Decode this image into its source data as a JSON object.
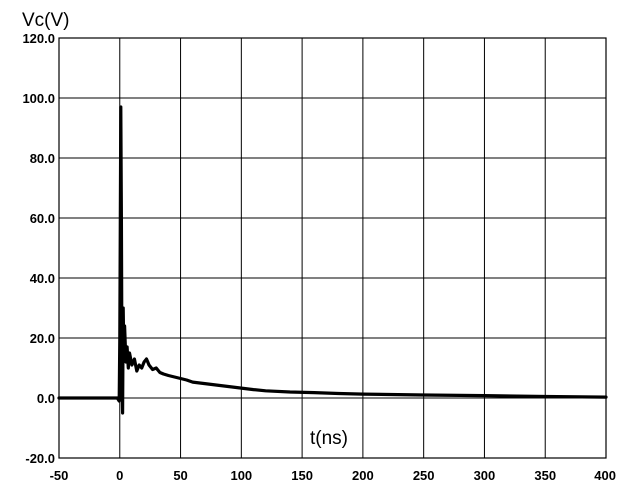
{
  "chart_data": {
    "type": "line",
    "title": "",
    "ylabel": "Vc(V)",
    "xlabel": "t(ns)",
    "xlim": [
      -50,
      400
    ],
    "ylim": [
      -20,
      120
    ],
    "x_ticks": [
      -50,
      0,
      50,
      100,
      150,
      200,
      250,
      300,
      350,
      400
    ],
    "y_ticks": [
      -20,
      0,
      20,
      40,
      60,
      80,
      100,
      120
    ],
    "x_tick_labels": [
      "-50",
      "0",
      "50",
      "100",
      "150",
      "200",
      "250",
      "300",
      "350",
      "400"
    ],
    "y_tick_labels": [
      "-20.0",
      "0.0",
      "20.0",
      "40.0",
      "60.0",
      "80.0",
      "100.0",
      "120.0"
    ],
    "grid": true,
    "legend": "none",
    "series": [
      {
        "color": "#000000",
        "points": [
          [
            -50,
            0
          ],
          [
            -20,
            0
          ],
          [
            -2,
            0
          ],
          [
            -0.5,
            -1
          ],
          [
            0,
            20
          ],
          [
            0.8,
            97
          ],
          [
            1.3,
            60
          ],
          [
            1.8,
            5
          ],
          [
            2.3,
            -5
          ],
          [
            2.8,
            30
          ],
          [
            3.3,
            15
          ],
          [
            4,
            24
          ],
          [
            5,
            12
          ],
          [
            6,
            17
          ],
          [
            7,
            10
          ],
          [
            8,
            15
          ],
          [
            10,
            11
          ],
          [
            12,
            13
          ],
          [
            14,
            9
          ],
          [
            16,
            11
          ],
          [
            18,
            10
          ],
          [
            20,
            12
          ],
          [
            22,
            13
          ],
          [
            24,
            11
          ],
          [
            27,
            9.5
          ],
          [
            30,
            10
          ],
          [
            33,
            8.5
          ],
          [
            36,
            8
          ],
          [
            40,
            7.5
          ],
          [
            45,
            7
          ],
          [
            50,
            6.5
          ],
          [
            55,
            6
          ],
          [
            60,
            5.3
          ],
          [
            70,
            4.8
          ],
          [
            80,
            4.3
          ],
          [
            90,
            3.8
          ],
          [
            100,
            3.3
          ],
          [
            110,
            2.8
          ],
          [
            120,
            2.4
          ],
          [
            140,
            2.0
          ],
          [
            160,
            1.8
          ],
          [
            180,
            1.5
          ],
          [
            200,
            1.3
          ],
          [
            250,
            1.0
          ],
          [
            300,
            0.8
          ],
          [
            350,
            0.5
          ],
          [
            400,
            0.3
          ]
        ]
      }
    ]
  }
}
